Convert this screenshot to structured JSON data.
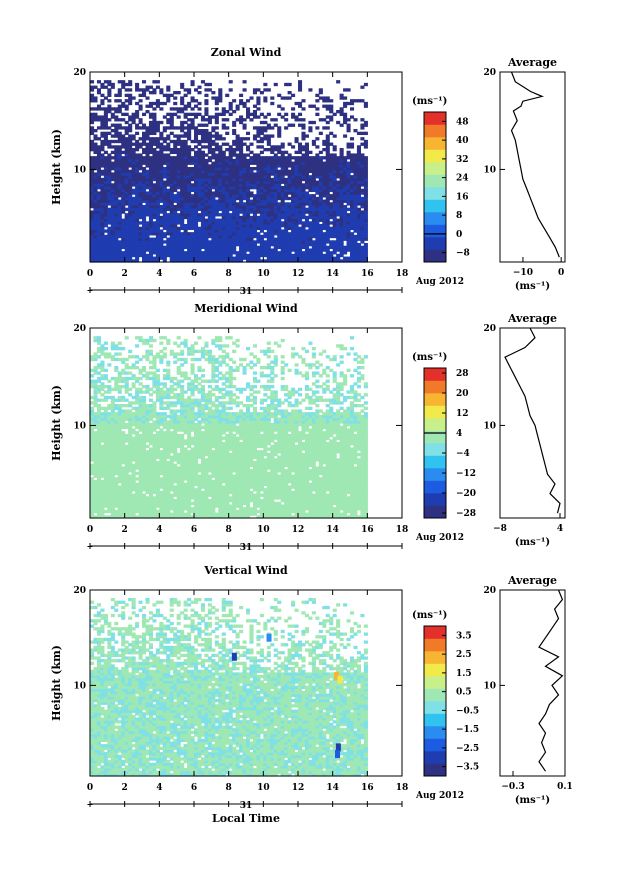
{
  "figure": {
    "date_label": "Aug 2012",
    "day_label": "31",
    "xlabel_bottom": "Local Time",
    "ylabel": "Height (km)",
    "unit": "(ms⁻¹)",
    "average_title": "Average",
    "panels": [
      {
        "id": "zonal",
        "title": "Zonal Wind"
      },
      {
        "id": "meridional",
        "title": "Meridional Wind"
      },
      {
        "id": "vertical",
        "title": "Vertical Wind"
      }
    ]
  },
  "colors": {
    "palette": [
      "#2e3182",
      "#1f3cb0",
      "#1d5ce0",
      "#2a8cf0",
      "#31c3ef",
      "#7fe0e6",
      "#9fe8b4",
      "#c8f08a",
      "#f2e94b",
      "#f7b531",
      "#f07a28",
      "#e4302a"
    ],
    "missing": "#ffffff"
  },
  "chart_data": [
    {
      "type": "heatmap",
      "title": "Zonal Wind",
      "xlabel": "",
      "ylabel": "Height (km)",
      "x_ticks": [
        0,
        2,
        4,
        6,
        8,
        10,
        12,
        14,
        16,
        18
      ],
      "y_ticks": [
        10,
        20
      ],
      "xlim": [
        0,
        18
      ],
      "ylim": [
        0.5,
        20
      ],
      "x_data_extent": [
        0,
        16
      ],
      "colorbar": {
        "unit": "(ms⁻¹)",
        "ticks": [
          48,
          40,
          32,
          24,
          16,
          8,
          0,
          -8
        ],
        "range": [
          -12,
          52
        ],
        "zero_line": 0
      },
      "field_range": [
        -12,
        -4
      ],
      "profile": {
        "title": "Average",
        "xlim": [
          -16,
          1
        ],
        "x_ticks": [
          -10,
          0
        ],
        "x_tick_labels": [
          "−10",
          "0"
        ],
        "xlabel": "(ms⁻¹)",
        "heights": [
          1,
          2,
          3,
          4,
          5,
          6,
          7,
          8,
          9,
          10,
          11,
          12,
          13,
          14,
          15,
          16,
          16.5,
          17,
          17.5,
          18,
          19,
          20
        ],
        "values": [
          -0.5,
          -1.5,
          -3,
          -4.5,
          -6,
          -7,
          -8,
          -9,
          -10,
          -10.5,
          -11,
          -11.5,
          -12,
          -13,
          -11.5,
          -12.5,
          -10.5,
          -10,
          -5,
          -8,
          -12,
          -13
        ]
      }
    },
    {
      "type": "heatmap",
      "title": "Meridional Wind",
      "xlabel": "",
      "ylabel": "Height (km)",
      "x_ticks": [
        0,
        2,
        4,
        6,
        8,
        10,
        12,
        14,
        16,
        18
      ],
      "y_ticks": [
        10,
        20
      ],
      "xlim": [
        0,
        18
      ],
      "ylim": [
        0.5,
        20
      ],
      "x_data_extent": [
        0,
        16
      ],
      "colorbar": {
        "unit": "(ms⁻¹)",
        "ticks": [
          28,
          20,
          12,
          4,
          -4,
          -12,
          -20,
          -28
        ],
        "range": [
          -30,
          30
        ],
        "zero_line": 4
      },
      "field_range": [
        -6,
        6
      ],
      "profile": {
        "title": "Average",
        "xlim": [
          -8,
          5
        ],
        "x_ticks": [
          -8,
          4
        ],
        "x_tick_labels": [
          "−8",
          "4"
        ],
        "xlabel": "(ms⁻¹)",
        "heights": [
          1,
          2,
          3,
          4,
          5,
          6,
          7,
          8,
          9,
          10,
          11,
          12,
          13,
          14,
          15,
          16,
          17,
          18,
          19,
          20
        ],
        "values": [
          3.5,
          4,
          2,
          3,
          1.5,
          1,
          0.5,
          0,
          -0.5,
          -1,
          -2,
          -2.5,
          -3,
          -4,
          -5,
          -6,
          -7,
          -3,
          -1,
          -2
        ]
      }
    },
    {
      "type": "heatmap",
      "title": "Vertical Wind",
      "xlabel": "Local Time",
      "ylabel": "Height (km)",
      "x_ticks": [
        0,
        2,
        4,
        6,
        8,
        10,
        12,
        14,
        16,
        18
      ],
      "y_ticks": [
        10,
        20
      ],
      "xlim": [
        0,
        18
      ],
      "ylim": [
        0.5,
        20
      ],
      "x_data_extent": [
        0,
        16
      ],
      "colorbar": {
        "unit": "(ms⁻¹)",
        "ticks": [
          3.5,
          2.5,
          1.5,
          0.5,
          -0.5,
          -1.5,
          -2.5,
          -3.5
        ],
        "range": [
          -4,
          4
        ]
      },
      "field_range": [
        -0.5,
        0.6
      ],
      "profile": {
        "title": "Average",
        "xlim": [
          -0.4,
          0.1
        ],
        "x_ticks": [
          -0.3,
          0.1
        ],
        "x_tick_labels": [
          "−0.3",
          "0.1"
        ],
        "xlabel": "(ms⁻¹)",
        "heights": [
          1,
          2,
          3,
          4,
          5,
          6,
          7,
          8,
          9,
          10,
          11,
          12,
          13,
          14,
          15,
          16,
          17,
          18,
          19,
          20
        ],
        "values": [
          -0.05,
          -0.1,
          -0.05,
          -0.08,
          -0.05,
          -0.1,
          -0.05,
          -0.02,
          0.05,
          0,
          0.08,
          -0.05,
          0.05,
          -0.1,
          -0.05,
          0,
          0.05,
          0.02,
          0.08,
          0.05
        ]
      }
    }
  ]
}
